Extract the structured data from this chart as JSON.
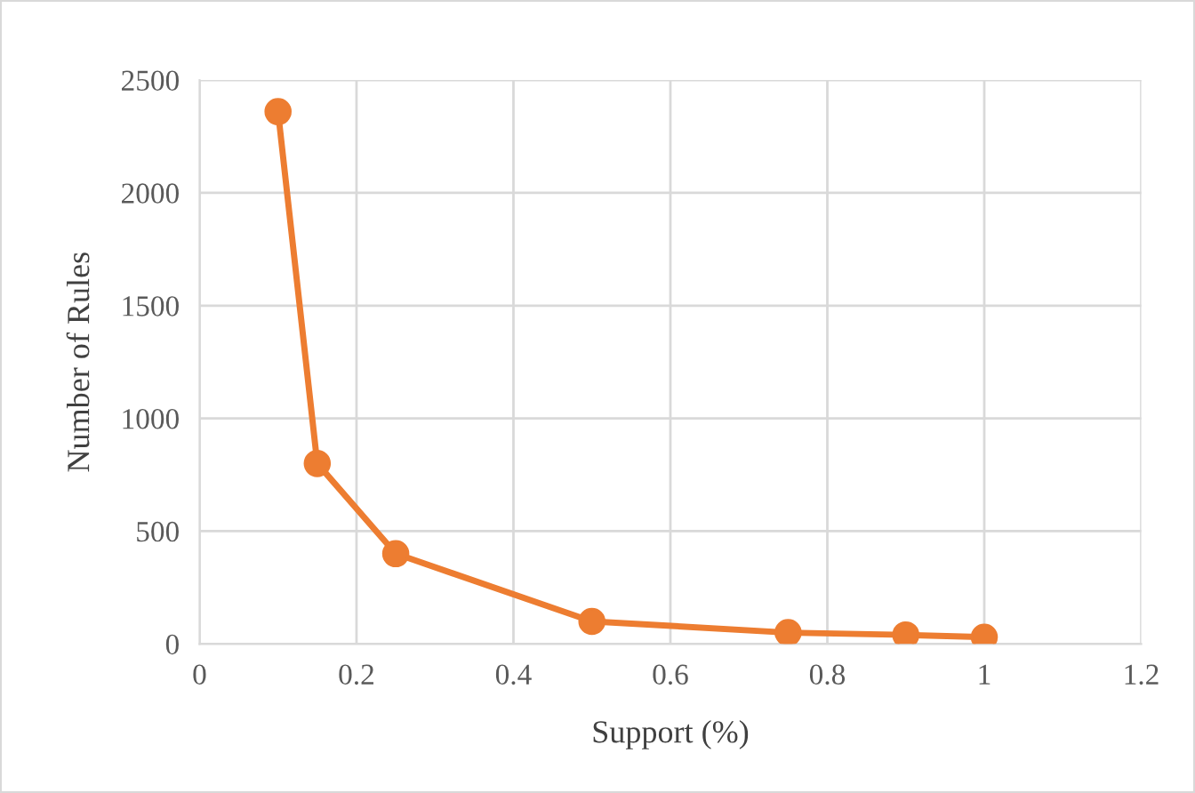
{
  "chart_data": {
    "type": "line",
    "xlabel": "Support (%)",
    "ylabel": "Number of Rules",
    "x": [
      0.1,
      0.15,
      0.25,
      0.5,
      0.75,
      0.9,
      1
    ],
    "series": [
      {
        "color": "#ed7d31",
        "values": [
          2360,
          800,
          400,
          100,
          50,
          40,
          30
        ]
      }
    ],
    "xlim": [
      0,
      1.2
    ],
    "xticks": [
      0,
      0.2,
      0.4,
      0.6,
      0.8,
      1,
      1.2
    ],
    "ylim": [
      0,
      2500
    ],
    "yticks": [
      0,
      500,
      1000,
      1500,
      2000,
      2500
    ],
    "grid": true,
    "marker": "circle",
    "line_style": "solid"
  }
}
